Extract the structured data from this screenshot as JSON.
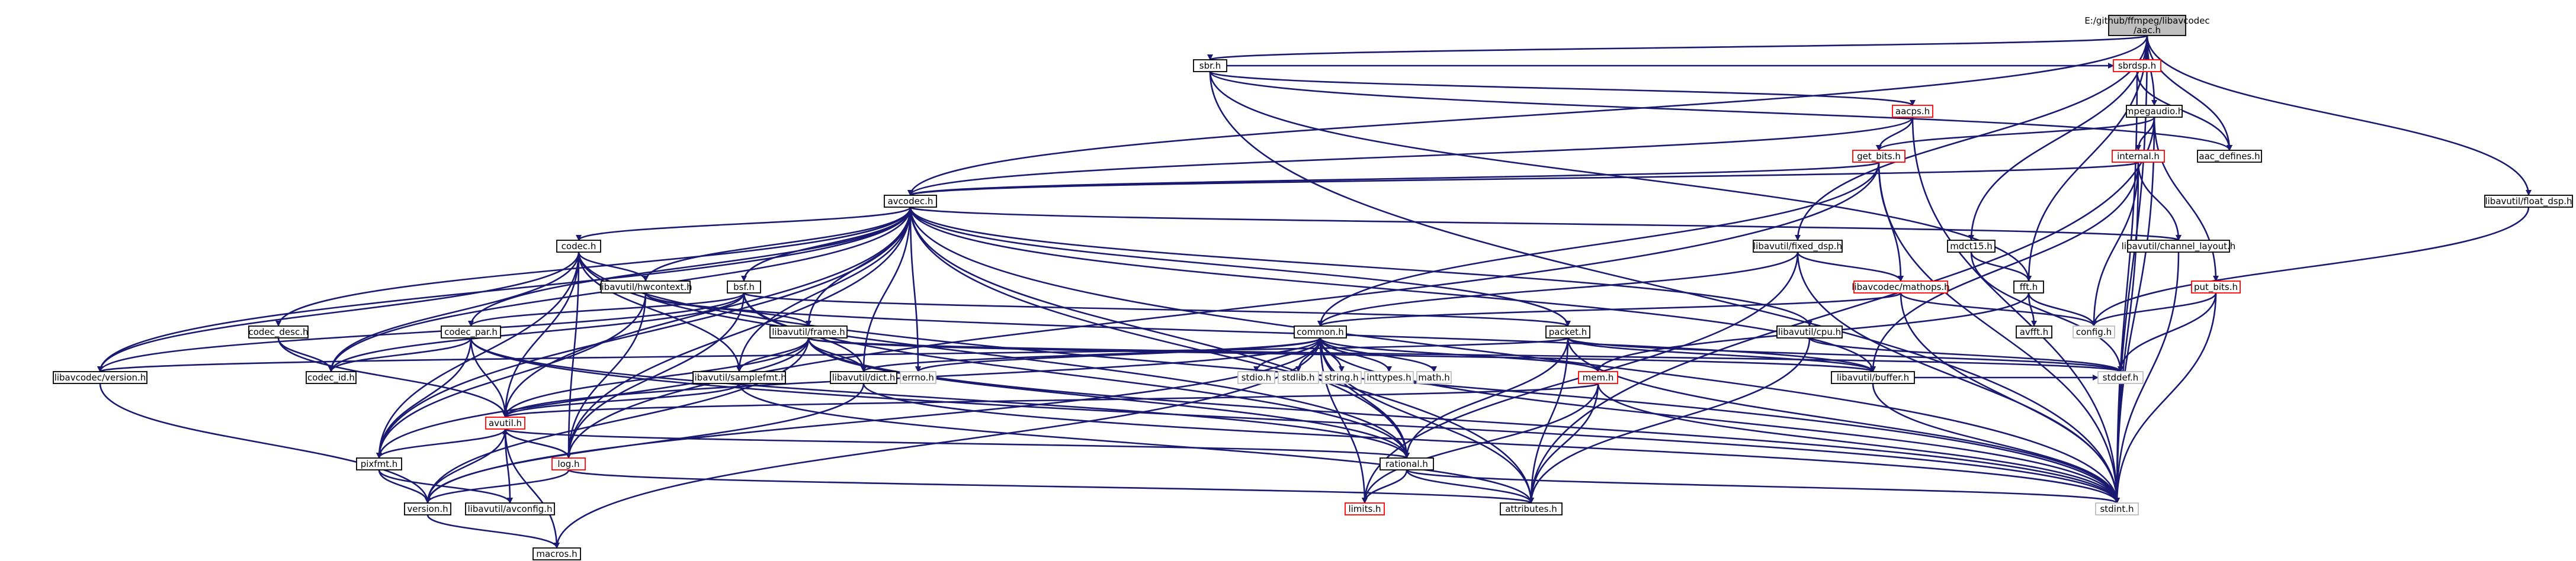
{
  "graph": {
    "colors": {
      "edge": "#191970",
      "root_fill": "#bfbfbf",
      "red_border": "#ff0000",
      "plain_border": "#000000",
      "ext_border": "#bfbfbf"
    },
    "nodes": [
      {
        "id": "aac",
        "label": "E:/github/ffmpeg/libavcodec\n/aac.h",
        "style": "root"
      },
      {
        "id": "sbr",
        "label": "sbr.h",
        "style": "plain"
      },
      {
        "id": "aacps",
        "label": "aacps.h",
        "style": "red"
      },
      {
        "id": "sbrdsp",
        "label": "sbrdsp.h",
        "style": "red"
      },
      {
        "id": "mpegaudio",
        "label": "mpegaudio.h",
        "style": "plain"
      },
      {
        "id": "getbits",
        "label": "get_bits.h",
        "style": "red"
      },
      {
        "id": "internal",
        "label": "internal.h",
        "style": "red"
      },
      {
        "id": "aacdefines",
        "label": "aac_defines.h",
        "style": "plain"
      },
      {
        "id": "avcodec",
        "label": "avcodec.h",
        "style": "plain"
      },
      {
        "id": "floatdsp",
        "label": "libavutil/float_dsp.h",
        "style": "plain"
      },
      {
        "id": "codec",
        "label": "codec.h",
        "style": "plain"
      },
      {
        "id": "fixeddsp",
        "label": "libavutil/fixed_dsp.h",
        "style": "plain"
      },
      {
        "id": "mdct15",
        "label": "mdct15.h",
        "style": "plain"
      },
      {
        "id": "chlayout",
        "label": "libavutil/channel_layout.h",
        "style": "plain"
      },
      {
        "id": "hwcontext",
        "label": "libavutil/hwcontext.h",
        "style": "plain"
      },
      {
        "id": "bsf",
        "label": "bsf.h",
        "style": "plain"
      },
      {
        "id": "mathops",
        "label": "libavcodec/mathops.h",
        "style": "red"
      },
      {
        "id": "fft",
        "label": "fft.h",
        "style": "plain"
      },
      {
        "id": "putbits",
        "label": "put_bits.h",
        "style": "red"
      },
      {
        "id": "codecdesc",
        "label": "codec_desc.h",
        "style": "plain"
      },
      {
        "id": "frame",
        "label": "libavutil/frame.h",
        "style": "plain"
      },
      {
        "id": "codecpar",
        "label": "codec_par.h",
        "style": "plain"
      },
      {
        "id": "common",
        "label": "common.h",
        "style": "plain"
      },
      {
        "id": "packet",
        "label": "packet.h",
        "style": "plain"
      },
      {
        "id": "cpu",
        "label": "libavutil/cpu.h",
        "style": "plain"
      },
      {
        "id": "avfft",
        "label": "avfft.h",
        "style": "plain"
      },
      {
        "id": "config",
        "label": "config.h",
        "style": "ext"
      },
      {
        "id": "lavcversion",
        "label": "libavcodec/version.h",
        "style": "plain"
      },
      {
        "id": "codecid",
        "label": "codec_id.h",
        "style": "plain"
      },
      {
        "id": "samplefmt",
        "label": "libavutil/samplefmt.h",
        "style": "plain"
      },
      {
        "id": "dict",
        "label": "libavutil/dict.h",
        "style": "plain"
      },
      {
        "id": "errno",
        "label": "errno.h",
        "style": "ext"
      },
      {
        "id": "stdioh",
        "label": "stdio.h",
        "style": "ext"
      },
      {
        "id": "stdlibh",
        "label": "stdlib.h",
        "style": "ext"
      },
      {
        "id": "stringh",
        "label": "string.h",
        "style": "ext"
      },
      {
        "id": "inttypes",
        "label": "inttypes.h",
        "style": "ext"
      },
      {
        "id": "mathh",
        "label": "math.h",
        "style": "ext"
      },
      {
        "id": "mem",
        "label": "mem.h",
        "style": "red"
      },
      {
        "id": "buffer",
        "label": "libavutil/buffer.h",
        "style": "plain"
      },
      {
        "id": "stddef",
        "label": "stddef.h",
        "style": "ext"
      },
      {
        "id": "avutil",
        "label": "avutil.h",
        "style": "red"
      },
      {
        "id": "pixfmt",
        "label": "pixfmt.h",
        "style": "plain"
      },
      {
        "id": "log",
        "label": "log.h",
        "style": "red"
      },
      {
        "id": "rational",
        "label": "rational.h",
        "style": "plain"
      },
      {
        "id": "version",
        "label": "version.h",
        "style": "plain"
      },
      {
        "id": "avconfig",
        "label": "libavutil/avconfig.h",
        "style": "plain"
      },
      {
        "id": "macros",
        "label": "macros.h",
        "style": "plain"
      },
      {
        "id": "limits",
        "label": "limits.h",
        "style": "red"
      },
      {
        "id": "attributes",
        "label": "attributes.h",
        "style": "plain"
      },
      {
        "id": "stdint",
        "label": "stdint.h",
        "style": "ext"
      }
    ],
    "edges": [
      [
        "aac",
        "sbr"
      ],
      [
        "aac",
        "mpegaudio"
      ],
      [
        "aac",
        "avcodec"
      ],
      [
        "aac",
        "fixeddsp"
      ],
      [
        "aac",
        "mdct15"
      ],
      [
        "aac",
        "fft"
      ],
      [
        "aac",
        "floatdsp"
      ],
      [
        "aac",
        "aacdefines"
      ],
      [
        "aac",
        "stdint"
      ],
      [
        "sbr",
        "aacps"
      ],
      [
        "sbr",
        "sbrdsp"
      ],
      [
        "sbr",
        "aacdefines"
      ],
      [
        "sbr",
        "fft"
      ],
      [
        "sbr",
        "stdint"
      ],
      [
        "aacps",
        "getbits"
      ],
      [
        "aacps",
        "avcodec"
      ],
      [
        "aacps",
        "stdint"
      ],
      [
        "sbrdsp",
        "aacdefines"
      ],
      [
        "sbrdsp",
        "stdint"
      ],
      [
        "mpegaudio",
        "getbits"
      ],
      [
        "mpegaudio",
        "internal"
      ],
      [
        "mpegaudio",
        "putbits"
      ],
      [
        "mpegaudio",
        "stdint"
      ],
      [
        "mpegaudio",
        "attributes"
      ],
      [
        "getbits",
        "avcodec"
      ],
      [
        "getbits",
        "mathops"
      ],
      [
        "getbits",
        "log"
      ],
      [
        "getbits",
        "common"
      ],
      [
        "getbits",
        "stdint"
      ],
      [
        "internal",
        "avcodec"
      ],
      [
        "internal",
        "chlayout"
      ],
      [
        "internal",
        "buffer"
      ],
      [
        "internal",
        "config"
      ],
      [
        "internal",
        "stdint"
      ],
      [
        "avcodec",
        "codec"
      ],
      [
        "avcodec",
        "hwcontext"
      ],
      [
        "avcodec",
        "bsf"
      ],
      [
        "avcodec",
        "codecdesc"
      ],
      [
        "avcodec",
        "codecpar"
      ],
      [
        "avcodec",
        "frame"
      ],
      [
        "avcodec",
        "packet"
      ],
      [
        "avcodec",
        "samplefmt"
      ],
      [
        "avcodec",
        "dict"
      ],
      [
        "avcodec",
        "errno"
      ],
      [
        "avcodec",
        "avutil"
      ],
      [
        "avcodec",
        "log"
      ],
      [
        "avcodec",
        "pixfmt"
      ],
      [
        "avcodec",
        "rational"
      ],
      [
        "avcodec",
        "lavcversion"
      ],
      [
        "avcodec",
        "codecid"
      ],
      [
        "avcodec",
        "chlayout"
      ],
      [
        "avcodec",
        "buffer"
      ],
      [
        "avcodec",
        "attributes"
      ],
      [
        "avcodec",
        "cpu"
      ],
      [
        "avcodec",
        "stdint"
      ],
      [
        "floatdsp",
        "config"
      ],
      [
        "codec",
        "hwcontext"
      ],
      [
        "codec",
        "log"
      ],
      [
        "codec",
        "pixfmt"
      ],
      [
        "codec",
        "rational"
      ],
      [
        "codec",
        "samplefmt"
      ],
      [
        "codec",
        "lavcversion"
      ],
      [
        "codec",
        "codecid"
      ],
      [
        "codec",
        "avutil"
      ],
      [
        "codec",
        "stdint"
      ],
      [
        "fixeddsp",
        "mathops"
      ],
      [
        "fixeddsp",
        "common"
      ],
      [
        "fixeddsp",
        "stdint"
      ],
      [
        "fixeddsp",
        "limits"
      ],
      [
        "mdct15",
        "fft"
      ],
      [
        "mdct15",
        "stddef"
      ],
      [
        "chlayout",
        "stdint"
      ],
      [
        "hwcontext",
        "frame"
      ],
      [
        "hwcontext",
        "buffer"
      ],
      [
        "hwcontext",
        "pixfmt"
      ],
      [
        "hwcontext",
        "log"
      ],
      [
        "bsf",
        "packet"
      ],
      [
        "bsf",
        "codecpar"
      ],
      [
        "bsf",
        "dict"
      ],
      [
        "bsf",
        "log"
      ],
      [
        "bsf",
        "rational"
      ],
      [
        "bsf",
        "lavcversion"
      ],
      [
        "bsf",
        "codecid"
      ],
      [
        "mathops",
        "common"
      ],
      [
        "mathops",
        "config"
      ],
      [
        "mathops",
        "stdint"
      ],
      [
        "fft",
        "avfft"
      ],
      [
        "fft",
        "config"
      ],
      [
        "fft",
        "mem"
      ],
      [
        "putbits",
        "config"
      ],
      [
        "putbits",
        "stddef"
      ],
      [
        "putbits",
        "stdint"
      ],
      [
        "codecdesc",
        "avutil"
      ],
      [
        "codecdesc",
        "codecid"
      ],
      [
        "frame",
        "avutil"
      ],
      [
        "frame",
        "buffer"
      ],
      [
        "frame",
        "dict"
      ],
      [
        "frame",
        "rational"
      ],
      [
        "frame",
        "samplefmt"
      ],
      [
        "frame",
        "pixfmt"
      ],
      [
        "frame",
        "version"
      ],
      [
        "frame",
        "stddef"
      ],
      [
        "frame",
        "stdint"
      ],
      [
        "codecpar",
        "avutil"
      ],
      [
        "codecpar",
        "rational"
      ],
      [
        "codecpar",
        "pixfmt"
      ],
      [
        "codecpar",
        "codecid"
      ],
      [
        "codecpar",
        "stdint"
      ],
      [
        "common",
        "errno"
      ],
      [
        "common",
        "inttypes"
      ],
      [
        "common",
        "limits"
      ],
      [
        "common",
        "mathh"
      ],
      [
        "common",
        "stdint"
      ],
      [
        "common",
        "stdioh"
      ],
      [
        "common",
        "stdlibh"
      ],
      [
        "common",
        "stringh"
      ],
      [
        "common",
        "attributes"
      ],
      [
        "common",
        "macros"
      ],
      [
        "common",
        "version"
      ],
      [
        "common",
        "mem"
      ],
      [
        "common",
        "avutil"
      ],
      [
        "common",
        "dict"
      ],
      [
        "common",
        "rational"
      ],
      [
        "packet",
        "buffer"
      ],
      [
        "packet",
        "attributes"
      ],
      [
        "packet",
        "rational"
      ],
      [
        "packet",
        "stddef"
      ],
      [
        "packet",
        "stdint"
      ],
      [
        "packet",
        "lavcversion"
      ],
      [
        "cpu",
        "stddef"
      ],
      [
        "cpu",
        "attributes"
      ],
      [
        "samplefmt",
        "avutil"
      ],
      [
        "samplefmt",
        "attributes"
      ],
      [
        "dict",
        "stdint"
      ],
      [
        "dict",
        "version"
      ],
      [
        "mem",
        "attributes"
      ],
      [
        "mem",
        "limits"
      ],
      [
        "mem",
        "stdint"
      ],
      [
        "mem",
        "avutil"
      ],
      [
        "buffer",
        "stdint"
      ],
      [
        "buffer",
        "stddef"
      ],
      [
        "avutil",
        "pixfmt"
      ],
      [
        "avutil",
        "log"
      ],
      [
        "avutil",
        "rational"
      ],
      [
        "avutil",
        "version"
      ],
      [
        "avutil",
        "macros"
      ],
      [
        "avutil",
        "avconfig"
      ],
      [
        "pixfmt",
        "avconfig"
      ],
      [
        "pixfmt",
        "version"
      ],
      [
        "log",
        "attributes"
      ],
      [
        "log",
        "version"
      ],
      [
        "log",
        "avutil"
      ],
      [
        "rational",
        "attributes"
      ],
      [
        "rational",
        "limits"
      ],
      [
        "rational",
        "stdint"
      ],
      [
        "version",
        "macros"
      ],
      [
        "lavcversion",
        "version"
      ]
    ]
  }
}
